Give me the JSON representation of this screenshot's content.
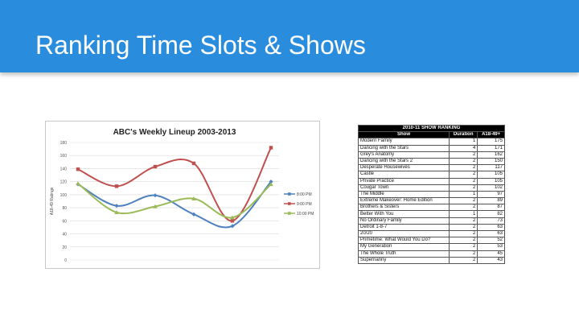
{
  "slide": {
    "title": "Ranking Time Slots & Shows"
  },
  "chart_data": {
    "type": "line",
    "title": "ABC's Weekly Lineup 2003-2013",
    "ylabel": "A18-49 Ratings",
    "xlabel": "",
    "ylim": [
      0,
      180
    ],
    "yticks": [
      0,
      20,
      40,
      60,
      80,
      100,
      120,
      140,
      160,
      180
    ],
    "x": [
      1,
      2,
      3,
      4,
      5,
      6
    ],
    "grid": true,
    "legend": "right",
    "series": [
      {
        "name": "8:00 PM",
        "color": "#4f81bd",
        "values": [
          116,
          83,
          99,
          70,
          52,
          120
        ]
      },
      {
        "name": "9:00 PM",
        "color": "#c0504d",
        "values": [
          139,
          113,
          143,
          148,
          60,
          172
        ]
      },
      {
        "name": "10:00 PM",
        "color": "#9bbb59",
        "values": [
          117,
          73,
          82,
          94,
          65,
          116
        ]
      }
    ]
  },
  "ranking": {
    "caption": "2010-11 SHOW RANKING",
    "headers": [
      "Show",
      "Duration",
      "A18-49+"
    ],
    "rows": [
      {
        "show": "Modern Family",
        "duration": "1",
        "value": "175"
      },
      {
        "show": "Dancing with the Stars",
        "duration": "4",
        "value": "171"
      },
      {
        "show": "Grey's Anatomy",
        "duration": "2",
        "value": "162"
      },
      {
        "show": "Dancing with the Stars 2",
        "duration": "2",
        "value": "150"
      },
      {
        "show": "Desperate Housewives",
        "duration": "2",
        "value": "117"
      },
      {
        "show": "Castle",
        "duration": "2",
        "value": "105"
      },
      {
        "show": "Private Practice",
        "duration": "2",
        "value": "105"
      },
      {
        "show": "Cougar Town",
        "duration": "2",
        "value": "102"
      },
      {
        "show": "The Middle",
        "duration": "1",
        "value": "97"
      },
      {
        "show": "Extreme Makeover: Home Edition",
        "duration": "2",
        "value": "89"
      },
      {
        "show": "Brothers & Sisters",
        "duration": "2",
        "value": "87"
      },
      {
        "show": "Better With You",
        "duration": "1",
        "value": "82"
      },
      {
        "show": "No Ordinary Family",
        "duration": "2",
        "value": "73"
      },
      {
        "show": "Detroit 1-8-7",
        "duration": "2",
        "value": "63"
      },
      {
        "show": "20/20",
        "duration": "2",
        "value": "63"
      },
      {
        "show": "Primetime: What Would You Do?",
        "duration": "2",
        "value": "52"
      },
      {
        "show": "My Generation",
        "duration": "2",
        "value": "53"
      },
      {
        "show": "The Whole Truth",
        "duration": "2",
        "value": "45"
      },
      {
        "show": "Supernanny",
        "duration": "2",
        "value": "43"
      }
    ]
  }
}
